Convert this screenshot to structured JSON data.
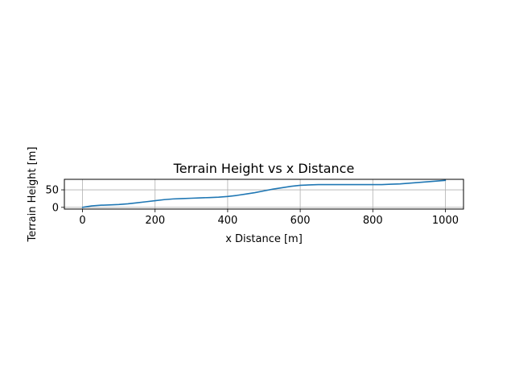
{
  "chart_data": {
    "type": "line",
    "title": "Terrain Height vs x Distance",
    "xlabel": "x Distance [m]",
    "ylabel": "Terrain Height [m]",
    "xlim": [
      -50,
      1050
    ],
    "ylim": [
      -5,
      80
    ],
    "grid": true,
    "xticks": [
      0,
      200,
      400,
      600,
      800,
      1000
    ],
    "yticks": [
      0,
      50
    ],
    "series": [
      {
        "color": "#1f77b4",
        "x": [
          0,
          25,
          50,
          75,
          100,
          125,
          150,
          175,
          200,
          225,
          250,
          275,
          300,
          325,
          350,
          375,
          400,
          425,
          450,
          475,
          500,
          525,
          550,
          575,
          600,
          625,
          650,
          675,
          700,
          725,
          750,
          775,
          800,
          825,
          850,
          875,
          900,
          925,
          950,
          975,
          1000
        ],
        "y": [
          0,
          4,
          6,
          7,
          8,
          10,
          13,
          16,
          19,
          22,
          24,
          25,
          26,
          27,
          28,
          29,
          31,
          34,
          38,
          42,
          47,
          52,
          56,
          60,
          63,
          64,
          65,
          65,
          65,
          65,
          65,
          65,
          65,
          65,
          66,
          67,
          69,
          71,
          73,
          75,
          77
        ]
      }
    ]
  }
}
